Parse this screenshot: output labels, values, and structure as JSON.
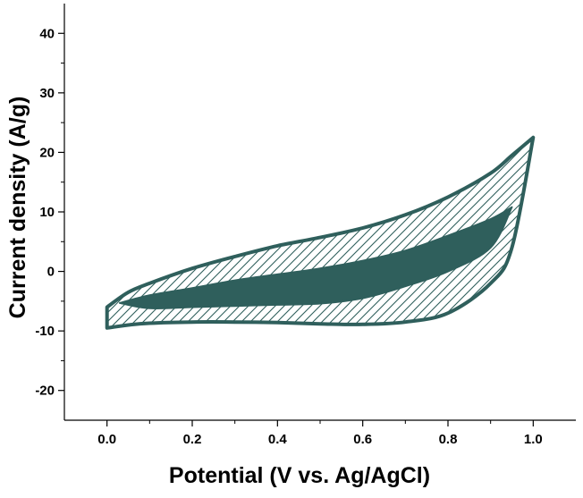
{
  "chart_data": {
    "type": "line",
    "title": "",
    "xlabel": "Potential (V vs. Ag/AgCl)",
    "ylabel": "Current density (A/g)",
    "xlim": [
      -0.1,
      1.1
    ],
    "ylim": [
      -25,
      45
    ],
    "x_ticks": [
      "0.0",
      "0.2",
      "0.4",
      "0.6",
      "0.8",
      "1.0"
    ],
    "y_ticks": [
      "-20",
      "-10",
      "0",
      "10",
      "20",
      "30",
      "40"
    ],
    "grid": false,
    "legend": "none",
    "colors": {
      "curve": "#2f5f5c",
      "fill": "#2f5f5c",
      "hatch": "#2f5f5c"
    },
    "series": [
      {
        "role": "outer-cv-loop",
        "fill": "hatched",
        "upper": {
          "x": [
            0.0,
            0.05,
            0.1,
            0.2,
            0.3,
            0.4,
            0.5,
            0.6,
            0.7,
            0.8,
            0.9,
            0.95,
            1.0
          ],
          "y": [
            -6.0,
            -3.5,
            -2.0,
            0.5,
            2.5,
            4.3,
            5.7,
            7.3,
            9.5,
            12.5,
            16.5,
            19.5,
            22.5
          ]
        },
        "lower": {
          "x": [
            0.0,
            0.05,
            0.1,
            0.2,
            0.3,
            0.4,
            0.5,
            0.6,
            0.7,
            0.8,
            0.9,
            0.95,
            1.0
          ],
          "y": [
            -9.5,
            -9.0,
            -8.7,
            -8.5,
            -8.5,
            -8.6,
            -8.8,
            -8.9,
            -8.5,
            -7.0,
            -2.0,
            4.0,
            22.5
          ]
        }
      },
      {
        "role": "inner-cv-loop",
        "fill": "solid",
        "upper": {
          "x": [
            0.03,
            0.1,
            0.2,
            0.3,
            0.4,
            0.5,
            0.6,
            0.7,
            0.8,
            0.9,
            0.95
          ],
          "y": [
            -5.3,
            -4.0,
            -2.8,
            -1.5,
            -0.5,
            0.5,
            1.8,
            3.5,
            6.0,
            8.8,
            10.8
          ]
        },
        "lower": {
          "x": [
            0.03,
            0.1,
            0.2,
            0.3,
            0.4,
            0.5,
            0.6,
            0.7,
            0.8,
            0.9,
            0.95
          ],
          "y": [
            -5.3,
            -6.2,
            -6.0,
            -5.8,
            -5.6,
            -5.4,
            -4.5,
            -2.5,
            0.0,
            4.0,
            10.8
          ]
        }
      }
    ]
  }
}
